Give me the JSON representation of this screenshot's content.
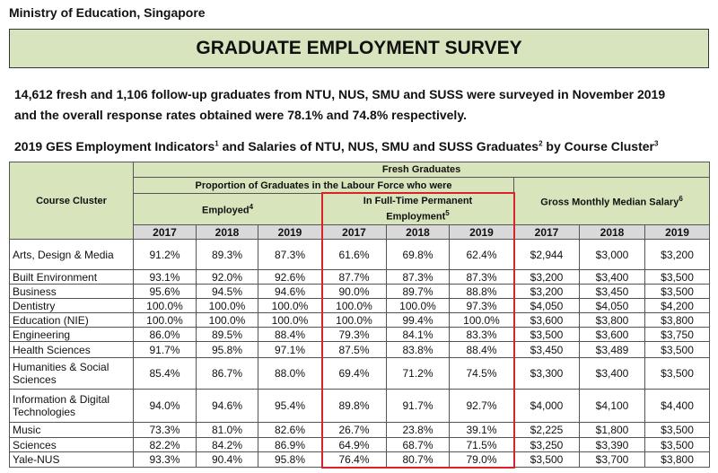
{
  "header": {
    "ministry": "Ministry of Education, Singapore",
    "title": "GRADUATE EMPLOYMENT SURVEY"
  },
  "intro": [
    "14,612 fresh and 1,106 follow-up graduates from NTU, NUS, SMU and SUSS were surveyed in November 2019",
    "and the overall response rates obtained were 78.1% and 74.8% respectively."
  ],
  "table": {
    "heading": [
      "2019 GES Employment Indicators",
      "1",
      " and Salaries of NTU, NUS, SMU and SUSS Graduates",
      "2",
      " by Course Cluster",
      "3"
    ],
    "course_cluster": "Course Cluster",
    "fresh_graduates": "Fresh Graduates",
    "proportion": "Proportion of Graduates in the Labour Force who were",
    "groups": [
      {
        "text": "Employed",
        "note": "4"
      },
      {
        "text": "In Full-Time Permanent Employment",
        "note": "5"
      },
      {
        "text": "Gross Monthly Median Salary",
        "note": "6"
      }
    ],
    "years": [
      "2017",
      "2018",
      "2019"
    ],
    "rows": [
      [
        "Arts, Design & Media",
        "91.2%",
        "89.3%",
        "87.3%",
        "61.6%",
        "69.8%",
        "62.4%",
        "$2,944",
        "$3,000",
        "$3,200"
      ],
      [
        "Built Environment",
        "93.1%",
        "92.0%",
        "92.6%",
        "87.7%",
        "87.3%",
        "87.3%",
        "$3,200",
        "$3,400",
        "$3,500"
      ],
      [
        "Business",
        "95.6%",
        "94.5%",
        "94.6%",
        "90.0%",
        "89.7%",
        "88.8%",
        "$3,200",
        "$3,450",
        "$3,500"
      ],
      [
        "Dentistry",
        "100.0%",
        "100.0%",
        "100.0%",
        "100.0%",
        "100.0%",
        "97.3%",
        "$4,050",
        "$4,050",
        "$4,200"
      ],
      [
        "Education (NIE)",
        "100.0%",
        "100.0%",
        "100.0%",
        "100.0%",
        "99.4%",
        "100.0%",
        "$3,600",
        "$3,800",
        "$3,800"
      ],
      [
        "Engineering",
        "86.0%",
        "89.5%",
        "88.4%",
        "79.3%",
        "84.1%",
        "83.3%",
        "$3,500",
        "$3,600",
        "$3,750"
      ],
      [
        "Health Sciences",
        "91.7%",
        "95.8%",
        "97.1%",
        "87.5%",
        "83.8%",
        "88.4%",
        "$3,450",
        "$3,489",
        "$3,500"
      ],
      [
        "Humanities & Social Sciences",
        "85.4%",
        "86.7%",
        "88.0%",
        "69.4%",
        "71.2%",
        "74.5%",
        "$3,300",
        "$3,400",
        "$3,500"
      ],
      [
        "Information & Digital Technologies",
        "94.0%",
        "94.6%",
        "95.4%",
        "89.8%",
        "91.7%",
        "92.7%",
        "$4,000",
        "$4,100",
        "$4,400"
      ],
      [
        "Music",
        "73.3%",
        "81.0%",
        "82.6%",
        "26.7%",
        "23.8%",
        "39.1%",
        "$2,225",
        "$1,800",
        "$3,500"
      ],
      [
        "Sciences",
        "82.2%",
        "84.2%",
        "86.9%",
        "64.9%",
        "68.7%",
        "71.5%",
        "$3,250",
        "$3,390",
        "$3,500"
      ],
      [
        "Yale-NUS",
        "93.3%",
        "90.4%",
        "95.8%",
        "76.4%",
        "80.7%",
        "79.0%",
        "$3,500",
        "$3,700",
        "$3,800"
      ]
    ]
  }
}
